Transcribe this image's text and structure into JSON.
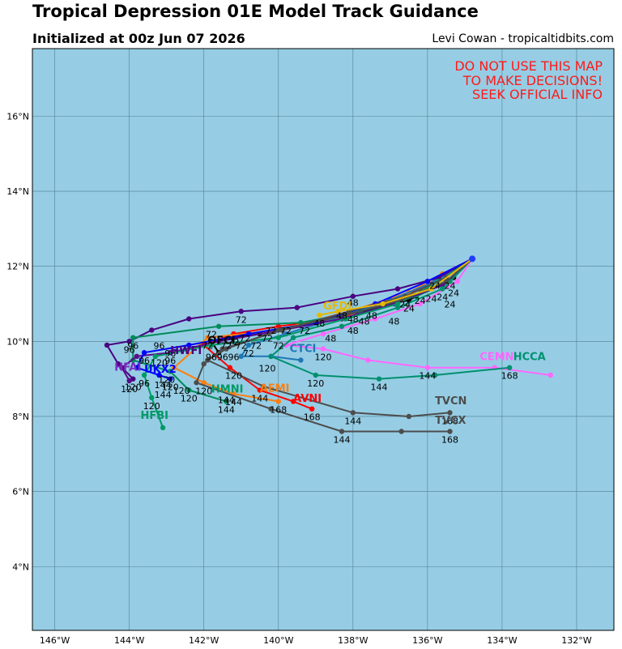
{
  "header": {
    "title": "Tropical Depression 01E Model Track Guidance",
    "subtitle": "Initialized at 00z Jun 07 2026",
    "credit": "Levi Cowan - tropicaltidbits.com"
  },
  "warning": [
    "DO NOT USE THIS MAP",
    "TO MAKE DECISIONS!",
    "SEEK OFFICIAL INFO"
  ],
  "colors": {
    "ocean": "#96cde4",
    "grid": "#4f7f93",
    "warning_text": "#ff1a1a"
  },
  "chart_data": {
    "type": "map-tracks",
    "lon_ticks": [
      "146°W",
      "144°W",
      "142°W",
      "140°W",
      "138°W",
      "136°W",
      "134°W",
      "132°W"
    ],
    "lat_ticks": [
      "4°N",
      "6°N",
      "8°N",
      "10°N",
      "12°N",
      "14°N",
      "16°N"
    ],
    "lon_range": [
      -146.6,
      -131.0
    ],
    "lat_range": [
      2.3,
      17.8
    ],
    "start": {
      "lon": -134.8,
      "lat": 12.2
    },
    "tracks": [
      {
        "name": "OFCI",
        "color": "#000000",
        "points": [
          [
            -134.8,
            12.2
          ],
          [
            -135.3,
            11.7
          ],
          [
            -136.5,
            11.1
          ],
          [
            -138.6,
            10.6
          ],
          [
            -140.5,
            10.2
          ],
          [
            -141.8,
            10.0
          ],
          [
            -141.6,
            9.7
          ]
        ],
        "hours": [
          {
            "lon": -136.5,
            "lat": 11.1,
            "h": "24"
          }
        ]
      },
      {
        "name": "AVNI",
        "color": "#ff0000",
        "points": [
          [
            -134.8,
            12.2
          ],
          [
            -136.2,
            11.4
          ],
          [
            -138.4,
            10.6
          ],
          [
            -140.0,
            10.4
          ],
          [
            -141.2,
            10.2
          ],
          [
            -142.0,
            9.9
          ],
          [
            -141.3,
            9.3
          ],
          [
            -140.5,
            8.7
          ],
          [
            -139.6,
            8.4
          ],
          [
            -139.1,
            8.2
          ]
        ],
        "hours": [
          {
            "lon": -141.2,
            "lat": 10.2,
            "h": "72"
          },
          {
            "lon": -140.5,
            "lat": 8.7,
            "h": "144"
          },
          {
            "lon": -139.1,
            "lat": 8.2,
            "h": "168"
          }
        ]
      },
      {
        "name": "AEMI",
        "color": "#ff7f0e",
        "points": [
          [
            -134.8,
            12.2
          ],
          [
            -135.6,
            11.8
          ],
          [
            -136.5,
            11.3
          ],
          [
            -138.1,
            10.8
          ],
          [
            -140.0,
            10.3
          ],
          [
            -141.9,
            10.1
          ],
          [
            -142.8,
            9.3
          ],
          [
            -142.0,
            8.9
          ],
          [
            -141.2,
            8.6
          ],
          [
            -140.0,
            8.4
          ]
        ],
        "hours": [
          {
            "lon": -141.9,
            "lat": 10.1,
            "h": "72"
          },
          {
            "lon": -142.0,
            "lat": 8.9,
            "h": "120"
          },
          {
            "lon": -141.2,
            "lat": 8.6,
            "h": "144"
          },
          {
            "lon": -140.0,
            "lat": 8.4,
            "h": "168"
          }
        ]
      },
      {
        "name": "CTCI",
        "color": "#1f77b4",
        "points": [
          [
            -134.8,
            12.2
          ],
          [
            -135.8,
            11.6
          ],
          [
            -137.0,
            11.1
          ],
          [
            -138.5,
            10.6
          ],
          [
            -139.8,
            10.2
          ],
          [
            -140.8,
            9.9
          ],
          [
            -141.0,
            9.6
          ],
          [
            -140.2,
            9.6
          ],
          [
            -139.4,
            9.5
          ]
        ],
        "hours": [
          {
            "lon": -140.8,
            "lat": 9.9,
            "h": "72"
          }
        ]
      },
      {
        "name": "HWFI",
        "color": "#4b0082",
        "points": [
          [
            -134.8,
            12.2
          ],
          [
            -135.7,
            11.7
          ],
          [
            -136.8,
            11.4
          ],
          [
            -138.0,
            11.2
          ],
          [
            -139.5,
            10.9
          ],
          [
            -141.0,
            10.8
          ],
          [
            -142.4,
            10.6
          ],
          [
            -143.4,
            10.3
          ],
          [
            -144.0,
            10.0
          ],
          [
            -144.6,
            9.9
          ],
          [
            -144.3,
            9.4
          ],
          [
            -143.9,
            9.0
          ]
        ],
        "hours": [
          {
            "lon": -141.0,
            "lat": 10.8,
            "h": "72"
          },
          {
            "lon": -144.0,
            "lat": 10.0,
            "h": "96"
          },
          {
            "lon": -143.9,
            "lat": 9.0,
            "h": "120"
          }
        ]
      },
      {
        "name": "HMNI",
        "color": "#008b5a",
        "points": [
          [
            -134.8,
            12.2
          ],
          [
            -135.4,
            11.6
          ],
          [
            -136.3,
            11.2
          ],
          [
            -137.8,
            10.8
          ],
          [
            -139.4,
            10.5
          ],
          [
            -141.6,
            10.4
          ],
          [
            -143.9,
            10.1
          ],
          [
            -143.9,
            9.5
          ],
          [
            -142.9,
            9.2
          ],
          [
            -142.4,
            8.7
          ],
          [
            -141.4,
            8.4
          ]
        ],
        "hours": [
          {
            "lon": -143.9,
            "lat": 10.1,
            "h": "96"
          },
          {
            "lon": -142.4,
            "lat": 8.7,
            "h": "120"
          },
          {
            "lon": -141.4,
            "lat": 8.4,
            "h": "144"
          }
        ]
      },
      {
        "name": "HFAI",
        "color": "#5c0a8a",
        "points": [
          [
            -134.8,
            12.2
          ],
          [
            -135.6,
            11.5
          ],
          [
            -136.9,
            11.0
          ],
          [
            -138.3,
            10.6
          ],
          [
            -139.9,
            10.3
          ],
          [
            -141.6,
            10.0
          ],
          [
            -142.9,
            9.7
          ],
          [
            -143.8,
            9.6
          ],
          [
            -144.2,
            9.3
          ],
          [
            -144.0,
            8.95
          ]
        ],
        "hours": [
          {
            "lon": -142.9,
            "lat": 9.7,
            "h": "96"
          },
          {
            "lon": -144.0,
            "lat": 8.95,
            "h": "120"
          }
        ]
      },
      {
        "name": "HFBI",
        "color": "#009966",
        "points": [
          [
            -134.8,
            12.2
          ],
          [
            -135.7,
            11.6
          ],
          [
            -136.8,
            11.0
          ],
          [
            -138.2,
            10.6
          ],
          [
            -140.0,
            10.1
          ],
          [
            -141.8,
            9.9
          ],
          [
            -143.3,
            9.6
          ],
          [
            -143.6,
            9.1
          ],
          [
            -143.4,
            8.5
          ],
          [
            -143.1,
            7.7
          ]
        ],
        "hours": [
          {
            "lon": -143.6,
            "lat": 9.1,
            "h": "96"
          },
          {
            "lon": -143.4,
            "lat": 8.5,
            "h": "120"
          }
        ]
      },
      {
        "name": "UKX2",
        "color": "#0000ff",
        "points": [
          [
            -134.8,
            12.2
          ],
          [
            -136.0,
            11.6
          ],
          [
            -137.4,
            11.0
          ],
          [
            -139.0,
            10.5
          ],
          [
            -140.8,
            10.2
          ],
          [
            -142.4,
            9.9
          ],
          [
            -143.6,
            9.7
          ],
          [
            -143.8,
            9.3
          ],
          [
            -143.2,
            9.1
          ],
          [
            -142.9,
            9.0
          ]
        ],
        "hours": [
          {
            "lon": -143.6,
            "lat": 9.7,
            "h": "96"
          },
          {
            "lon": -142.9,
            "lat": 9.0,
            "h": "120"
          },
          {
            "lon": -143.1,
            "lat": 8.8,
            "h": "144"
          }
        ]
      },
      {
        "name": "CEMN",
        "color": "#ff66ff",
        "points": [
          [
            -134.8,
            12.2
          ],
          [
            -135.2,
            11.6
          ],
          [
            -136.2,
            11.0
          ],
          [
            -137.4,
            10.6
          ],
          [
            -138.8,
            10.2
          ],
          [
            -139.8,
            9.9
          ],
          [
            -138.8,
            9.8
          ],
          [
            -137.6,
            9.5
          ],
          [
            -136.0,
            9.3
          ],
          [
            -134.2,
            9.3
          ],
          [
            -132.7,
            9.1
          ]
        ],
        "hours": [
          {
            "lon": -138.8,
            "lat": 9.8,
            "h": "120"
          },
          {
            "lon": -136.0,
            "lat": 9.3,
            "h": "144"
          }
        ]
      },
      {
        "name": "HCCA",
        "color": "#009070",
        "points": [
          [
            -134.8,
            12.2
          ],
          [
            -135.6,
            11.4
          ],
          [
            -136.8,
            10.9
          ],
          [
            -138.3,
            10.4
          ],
          [
            -139.6,
            10.1
          ],
          [
            -140.2,
            9.6
          ],
          [
            -139.0,
            9.1
          ],
          [
            -137.3,
            9.0
          ],
          [
            -135.8,
            9.1
          ],
          [
            -133.8,
            9.3
          ]
        ],
        "hours": [
          {
            "lon": -139.0,
            "lat": 9.1,
            "h": "120"
          },
          {
            "lon": -137.3,
            "lat": 9.0,
            "h": "144"
          },
          {
            "lon": -133.8,
            "lat": 9.3,
            "h": "168"
          }
        ]
      },
      {
        "name": "TVCN",
        "color": "#4d4d4d",
        "points": [
          [
            -134.8,
            12.2
          ],
          [
            -135.5,
            11.6
          ],
          [
            -136.7,
            11.1
          ],
          [
            -138.2,
            10.7
          ],
          [
            -140.0,
            10.3
          ],
          [
            -141.4,
            9.8
          ],
          [
            -141.9,
            9.5
          ],
          [
            -140.4,
            8.8
          ],
          [
            -138.0,
            8.1
          ],
          [
            -136.5,
            8.0
          ],
          [
            -135.4,
            8.1
          ]
        ],
        "hours": [
          {
            "lon": -138.0,
            "lat": 8.1,
            "h": "144"
          },
          {
            "lon": -135.4,
            "lat": 8.1,
            "h": "168"
          }
        ]
      },
      {
        "name": "TVCX",
        "color": "#4d4d4d",
        "points": [
          [
            -134.8,
            12.2
          ],
          [
            -135.5,
            11.7
          ],
          [
            -136.6,
            11.2
          ],
          [
            -138.1,
            10.8
          ],
          [
            -139.9,
            10.3
          ],
          [
            -141.5,
            9.8
          ],
          [
            -142.0,
            9.4
          ],
          [
            -142.2,
            8.9
          ],
          [
            -140.2,
            8.2
          ],
          [
            -138.3,
            7.6
          ],
          [
            -136.7,
            7.6
          ],
          [
            -135.4,
            7.6
          ]
        ],
        "hours": [
          {
            "lon": -138.3,
            "lat": 7.6,
            "h": "144"
          },
          {
            "lon": -135.4,
            "lat": 7.6,
            "h": "168"
          }
        ]
      },
      {
        "name": "GFDI",
        "color": "#e6b800",
        "points": [
          [
            -134.8,
            12.2
          ],
          [
            -135.9,
            11.4
          ],
          [
            -137.2,
            11.0
          ],
          [
            -138.4,
            10.8
          ],
          [
            -138.9,
            10.7
          ]
        ],
        "hours": [
          {
            "lon": -138.9,
            "lat": 10.7,
            "h": "48"
          }
        ]
      }
    ],
    "labels": [
      {
        "text": "OFCI",
        "lon": -141.9,
        "lat": 9.93,
        "color": "#000000"
      },
      {
        "text": "HWFI",
        "lon": -142.9,
        "lat": 9.66,
        "color": "#4b0082"
      },
      {
        "text": "HFAI",
        "lon": -144.4,
        "lat": 9.22,
        "color": "#7b2cbf"
      },
      {
        "text": "UKX2",
        "lon": -143.6,
        "lat": 9.16,
        "color": "#0000ff"
      },
      {
        "text": "HMNI",
        "lon": -141.8,
        "lat": 8.64,
        "color": "#009966"
      },
      {
        "text": "AEMI",
        "lon": -140.5,
        "lat": 8.66,
        "color": "#ff7f0e"
      },
      {
        "text": "AVNI",
        "lon": -139.6,
        "lat": 8.39,
        "color": "#ff0000"
      },
      {
        "text": "HFBI",
        "lon": -143.7,
        "lat": 7.93,
        "color": "#009966"
      },
      {
        "text": "CTCI",
        "lon": -139.7,
        "lat": 9.72,
        "color": "#1f77b4"
      },
      {
        "text": "GFDI",
        "lon": -138.8,
        "lat": 10.85,
        "color": "#e6b800"
      },
      {
        "text": "CEMN",
        "lon": -134.6,
        "lat": 9.5,
        "color": "#ff66ff"
      },
      {
        "text": "HCCA",
        "lon": -133.7,
        "lat": 9.5,
        "color": "#009070"
      },
      {
        "text": "TVCN",
        "lon": -135.8,
        "lat": 8.32,
        "color": "#4d4d4d"
      },
      {
        "text": "TVCX",
        "lon": -135.8,
        "lat": 7.8,
        "color": "#4d4d4d"
      }
    ],
    "hour_marks": [
      {
        "h": "24",
        "lon": -135.3,
        "lat": 11.2
      },
      {
        "h": "24",
        "lon": -135.6,
        "lat": 11.1
      },
      {
        "h": "24",
        "lon": -135.9,
        "lat": 11.05
      },
      {
        "h": "24",
        "lon": -136.2,
        "lat": 11.0
      },
      {
        "h": "24",
        "lon": -135.8,
        "lat": 11.4
      },
      {
        "h": "24",
        "lon": -135.4,
        "lat": 11.4
      },
      {
        "h": "24",
        "lon": -135.4,
        "lat": 10.9
      },
      {
        "h": "24",
        "lon": -136.6,
        "lat": 10.9
      },
      {
        "h": "48",
        "lon": -138.0,
        "lat": 10.95
      },
      {
        "h": "48",
        "lon": -137.5,
        "lat": 10.6
      },
      {
        "h": "48",
        "lon": -138.0,
        "lat": 10.5
      },
      {
        "h": "48",
        "lon": -138.3,
        "lat": 10.6
      },
      {
        "h": "48",
        "lon": -137.7,
        "lat": 10.45
      },
      {
        "h": "48",
        "lon": -136.9,
        "lat": 10.45
      },
      {
        "h": "48",
        "lon": -138.0,
        "lat": 10.2
      },
      {
        "h": "48",
        "lon": -138.6,
        "lat": 10.0
      },
      {
        "h": "72",
        "lon": -140.3,
        "lat": 10.0
      },
      {
        "h": "72",
        "lon": -140.6,
        "lat": 9.8
      },
      {
        "h": "72",
        "lon": -141.0,
        "lat": 9.8
      },
      {
        "h": "72",
        "lon": -141.4,
        "lat": 9.8
      },
      {
        "h": "72",
        "lon": -139.8,
        "lat": 10.2
      },
      {
        "h": "72",
        "lon": -140.2,
        "lat": 10.2
      },
      {
        "h": "72",
        "lon": -139.3,
        "lat": 10.2
      },
      {
        "h": "72",
        "lon": -141.8,
        "lat": 10.1
      },
      {
        "h": "72",
        "lon": -140.0,
        "lat": 9.8
      },
      {
        "h": "72",
        "lon": -141.2,
        "lat": 9.9
      },
      {
        "h": "72",
        "lon": -140.9,
        "lat": 10.0
      },
      {
        "h": "96",
        "lon": -141.2,
        "lat": 9.5
      },
      {
        "h": "96",
        "lon": -141.5,
        "lat": 9.5
      },
      {
        "h": "96",
        "lon": -141.8,
        "lat": 9.5
      },
      {
        "h": "96",
        "lon": -143.2,
        "lat": 9.8
      },
      {
        "h": "96",
        "lon": -142.9,
        "lat": 9.6
      },
      {
        "h": "120",
        "lon": -143.2,
        "lat": 9.35
      },
      {
        "h": "120",
        "lon": -141.2,
        "lat": 9.0
      },
      {
        "h": "120",
        "lon": -140.3,
        "lat": 9.2
      },
      {
        "h": "120",
        "lon": -142.6,
        "lat": 8.6
      },
      {
        "h": "120",
        "lon": -143.0,
        "lat": 8.9
      },
      {
        "h": "144",
        "lon": -143.1,
        "lat": 8.75
      },
      {
        "h": "144",
        "lon": -141.4,
        "lat": 8.35
      }
    ]
  }
}
